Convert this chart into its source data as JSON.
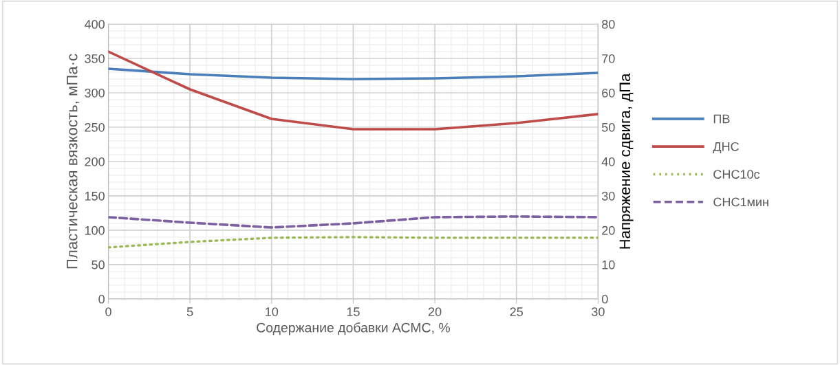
{
  "chart_data": {
    "type": "line",
    "xlabel": "Содержание добавки АСМС, %",
    "ylabel": "Пластическая вязкость, мПа·с",
    "y2label": "Напряжение сдвига, дПа",
    "x": [
      0,
      5,
      10,
      15,
      20,
      25,
      30
    ],
    "series": [
      {
        "name": "ПВ",
        "color": "#4a7ebb",
        "values": [
          335,
          327,
          322,
          320,
          321,
          324,
          329
        ],
        "line_style": "solid"
      },
      {
        "name": "ДНС",
        "color": "#be4b48",
        "axis": "y2",
        "values": [
          72,
          61,
          52.4,
          49.4,
          49.4,
          51.2,
          53.8
        ],
        "line_style": "solid"
      },
      {
        "name": "СНС10с",
        "color": "#98b954",
        "axis": "y2",
        "values": [
          15,
          16.6,
          17.8,
          18,
          17.8,
          17.8,
          17.8
        ],
        "line_style": "dotted"
      },
      {
        "name": "СНС1мин",
        "color": "#7d60a0",
        "axis": "y2",
        "values": [
          23.8,
          22.2,
          20.8,
          22,
          23.8,
          24,
          23.8
        ],
        "line_style": "dashed"
      }
    ],
    "xlim": [
      0,
      30
    ],
    "xticks": [
      0,
      5,
      10,
      15,
      20,
      25,
      30
    ],
    "ylim": [
      0,
      400
    ],
    "yticks": [
      0,
      50,
      100,
      150,
      200,
      250,
      300,
      350,
      400
    ],
    "y2lim": [
      0,
      80
    ],
    "y2ticks": [
      0,
      10,
      20,
      30,
      40,
      50,
      60,
      70,
      80
    ],
    "grid": true,
    "legend": "right",
    "marker": "none"
  }
}
